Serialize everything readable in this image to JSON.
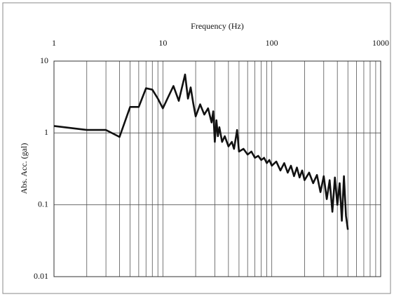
{
  "chart_data": {
    "type": "line",
    "title": "Frequency (Hz)",
    "y_label": "Abs. Acc. (gal)",
    "x_log": true,
    "y_log": true,
    "grid": true,
    "color": "#111111",
    "xlim": [
      1,
      1000
    ],
    "ylim": [
      0.01,
      10
    ],
    "xticks": [
      1,
      10,
      100,
      1000
    ],
    "yticks": [
      0.01,
      0.1,
      1,
      10
    ],
    "x_minor_ticks": [
      2,
      3,
      4,
      5,
      6,
      7,
      8,
      9,
      20,
      30,
      40,
      50,
      60,
      70,
      80,
      90,
      200,
      300,
      400,
      500,
      600,
      700,
      800,
      900
    ],
    "series": [
      {
        "name": "Abs. Acc.",
        "color": "#111111",
        "x": [
          1,
          2,
          3,
          4,
          5,
          6,
          7,
          8,
          9,
          10,
          11,
          12.5,
          14,
          16,
          17,
          18,
          19,
          20,
          22,
          24,
          26,
          28,
          29,
          30,
          31,
          32,
          33,
          35,
          37,
          40,
          43,
          45,
          48,
          50,
          55,
          60,
          65,
          70,
          75,
          80,
          85,
          90,
          95,
          100,
          110,
          120,
          130,
          140,
          150,
          160,
          170,
          180,
          190,
          200,
          220,
          240,
          260,
          280,
          300,
          320,
          340,
          360,
          380,
          400,
          420,
          440,
          460,
          480,
          500
        ],
        "values": [
          1.25,
          1.1,
          1.1,
          0.88,
          2.3,
          2.3,
          4.2,
          4.0,
          3.0,
          2.2,
          3.0,
          4.5,
          2.8,
          6.5,
          3.0,
          4.3,
          2.6,
          1.7,
          2.5,
          1.8,
          2.2,
          1.4,
          2.0,
          0.75,
          1.5,
          0.9,
          1.2,
          0.75,
          0.9,
          0.65,
          0.75,
          0.6,
          1.1,
          0.55,
          0.6,
          0.5,
          0.55,
          0.45,
          0.48,
          0.42,
          0.45,
          0.38,
          0.42,
          0.35,
          0.4,
          0.3,
          0.38,
          0.28,
          0.35,
          0.25,
          0.33,
          0.24,
          0.3,
          0.22,
          0.28,
          0.2,
          0.26,
          0.15,
          0.25,
          0.12,
          0.22,
          0.08,
          0.24,
          0.1,
          0.2,
          0.06,
          0.25,
          0.07,
          0.045
        ]
      }
    ]
  }
}
